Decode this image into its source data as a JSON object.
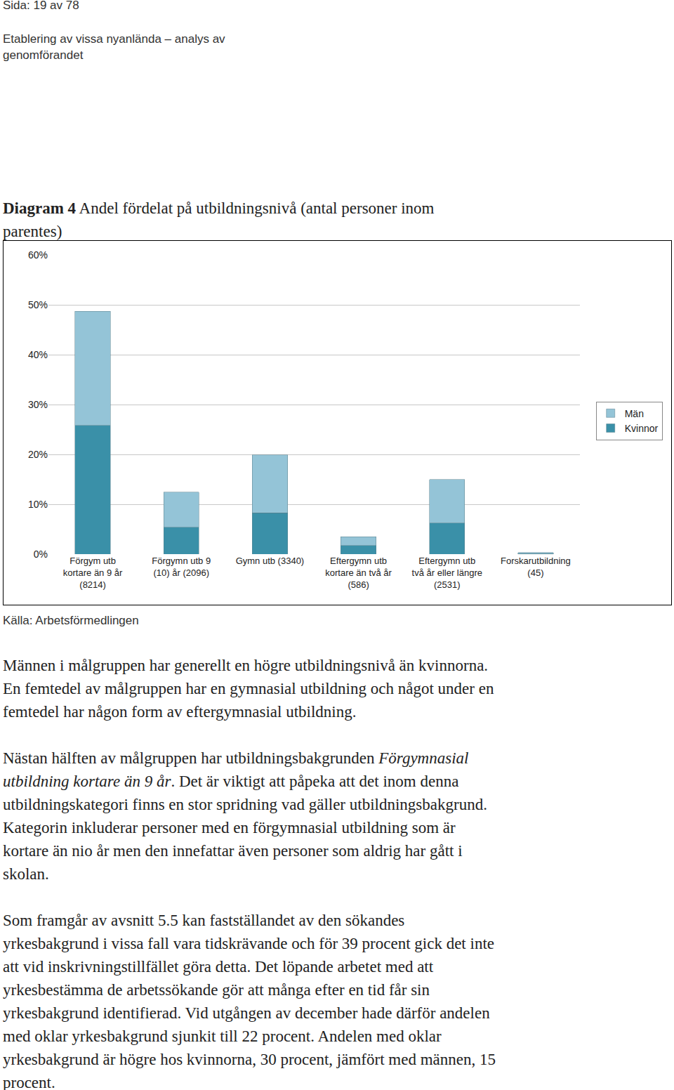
{
  "header": {
    "page": "Sida: 19 av 78",
    "lines": [
      "Etablering av vissa nyanlända – analys av",
      "genomförandet"
    ]
  },
  "caption": {
    "label": "Diagram 4",
    "lines": [
      "Andel fördelat på utbildningsnivå (antal personer inom",
      "parentes)"
    ]
  },
  "chart_data": {
    "type": "bar",
    "stacked": true,
    "categories": [
      "Förgym utb\nkortare än 9 år\n(8214)",
      "Förgymn utb 9\n(10) år (2096)",
      "Gymn utb (3340)",
      "Eftergymn utb\nkortare än två år\n(586)",
      "Eftergymn utb\ntvå år eller längre\n(2531)",
      "Forskarutbildning\n(45)"
    ],
    "series": [
      {
        "name": "Kvinnor",
        "color": "#3a90a8",
        "values": [
          25.8,
          5.4,
          8.3,
          1.7,
          6.2,
          0.1
        ]
      },
      {
        "name": "Män",
        "color": "#94c4d7",
        "values": [
          22.9,
          7.0,
          11.6,
          1.8,
          8.8,
          0.2
        ]
      }
    ],
    "ylim": [
      0,
      60
    ],
    "yticks": [
      {
        "value": 0,
        "label": "0%"
      },
      {
        "value": 10,
        "label": "10%"
      },
      {
        "value": 20,
        "label": "20%"
      },
      {
        "value": 30,
        "label": "30%"
      },
      {
        "value": 40,
        "label": "40%"
      },
      {
        "value": 50,
        "label": "50%"
      },
      {
        "value": 60,
        "label": "60%"
      }
    ],
    "grid": true,
    "legend": "right"
  },
  "source": "Källa: Arbetsförmedlingen",
  "paragraphs": [
    [
      [
        "Männen i målgruppen har generellt en högre utbildningsnivå än kvinnorna."
      ],
      [
        "En femtedel av målgruppen har en gymnasial utbildning och något under en"
      ],
      [
        "femtedel har någon form av eftergymnasial utbildning."
      ]
    ],
    [
      [
        "Nästan hälften av målgruppen har utbildningsbakgrunden ",
        {
          "italic": "Förgymnasial"
        }
      ],
      [
        {
          "italic": "utbildning kortare än 9 år"
        },
        ". Det är viktigt att påpeka att det inom denna"
      ],
      [
        "utbildningskategori finns en stor spridning vad gäller utbildningsbakgrund."
      ],
      [
        "Kategorin inkluderar personer med en förgymnasial utbildning som är"
      ],
      [
        "kortare än nio år men den innefattar även personer som aldrig har gått i"
      ],
      [
        "skolan."
      ]
    ],
    [
      [
        "Som framgår av avsnitt 5.5 kan fastställandet av den sökandes"
      ],
      [
        "yrkesbakgrund i vissa fall vara tidskrävande och för 39 procent gick det inte"
      ],
      [
        "att vid inskrivningstillfället göra detta. Det löpande arbetet med att"
      ],
      [
        "yrkesbestämma de arbetssökande gör att många efter en tid får sin"
      ],
      [
        "yrkesbakgrund identifierad. Vid utgången av december hade därför andelen"
      ],
      [
        "med oklar yrkesbakgrund sjunkit till 22 procent. Andelen med oklar"
      ],
      [
        "yrkesbakgrund är högre hos kvinnorna, 30 procent, jämfört med männen, 15"
      ],
      [
        "procent."
      ]
    ]
  ]
}
